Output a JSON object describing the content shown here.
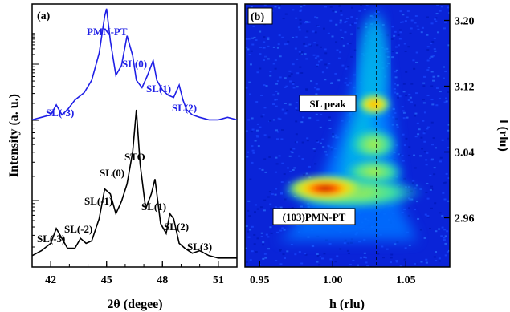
{
  "chart_data": [
    {
      "panel": "(a)",
      "type": "line",
      "xlabel": "2θ (degee)",
      "ylabel": "Intensity (a. u.)",
      "xlim": [
        41,
        52
      ],
      "xticks": [
        42,
        45,
        48,
        51
      ],
      "series": [
        {
          "color": "#1f1fe6",
          "x": [
            41.0,
            41.5,
            42.0,
            42.3,
            42.6,
            42.9,
            43.3,
            43.8,
            44.2,
            44.6,
            44.9,
            45.0,
            45.2,
            45.5,
            45.8,
            46.1,
            46.4,
            46.6,
            46.9,
            47.2,
            47.5,
            47.7,
            48.0,
            48.3,
            48.6,
            48.9,
            49.1,
            49.3,
            49.6,
            50.0,
            50.5,
            51.0,
            51.5,
            52.0
          ],
          "values": [
            0.58,
            0.59,
            0.6,
            0.64,
            0.6,
            0.62,
            0.66,
            0.69,
            0.74,
            0.85,
            1.0,
            1.03,
            0.9,
            0.76,
            0.8,
            0.92,
            0.84,
            0.74,
            0.71,
            0.76,
            0.82,
            0.74,
            0.7,
            0.68,
            0.67,
            0.72,
            0.66,
            0.62,
            0.6,
            0.59,
            0.58,
            0.58,
            0.59,
            0.58
          ]
        },
        {
          "color": "#000000",
          "x": [
            41.0,
            41.5,
            42.0,
            42.3,
            42.6,
            42.9,
            43.3,
            43.6,
            43.9,
            44.2,
            44.6,
            44.9,
            45.2,
            45.5,
            45.8,
            46.1,
            46.4,
            46.6,
            46.8,
            47.1,
            47.4,
            47.6,
            47.9,
            48.2,
            48.4,
            48.6,
            48.9,
            49.2,
            49.6,
            50.0,
            50.5,
            51.0,
            51.5,
            52.0
          ],
          "values": [
            0.03,
            0.05,
            0.08,
            0.14,
            0.1,
            0.06,
            0.06,
            0.1,
            0.08,
            0.09,
            0.18,
            0.3,
            0.28,
            0.2,
            0.25,
            0.32,
            0.45,
            0.62,
            0.4,
            0.22,
            0.28,
            0.34,
            0.16,
            0.12,
            0.2,
            0.18,
            0.08,
            0.06,
            0.04,
            0.05,
            0.03,
            0.02,
            0.02,
            0.02
          ]
        }
      ],
      "annotations_top": [
        "PMN-PT",
        "SL(0)",
        "SL(1)",
        "SL(2)",
        "SL(-3)"
      ],
      "annotations_bottom": [
        "STO",
        "SL(0)",
        "SL(-1)",
        "SL(1)",
        "SL(-2)",
        "SL(2)",
        "SL(-3)",
        "SL(3)"
      ],
      "ylabel_ticks": "log-scale minor ticks (unlabeled)"
    },
    {
      "panel": "(b)",
      "type": "heatmap",
      "xlabel": "h (rlu)",
      "ylabel": "l (rlu)",
      "xlim": [
        0.94,
        1.08
      ],
      "ylim": [
        2.9,
        3.22
      ],
      "xticks": [
        "0.95",
        "1.00",
        "1.05"
      ],
      "yticks": [
        "2.96",
        "3.04",
        "3.12",
        "3.20"
      ],
      "dashed_line_h": 1.03,
      "labels": [
        "SL peak",
        "(103)PMN-PT"
      ],
      "colormap": "jet"
    }
  ],
  "colors": {
    "blue_series": "#1f1fe6",
    "black_series": "#000000"
  }
}
